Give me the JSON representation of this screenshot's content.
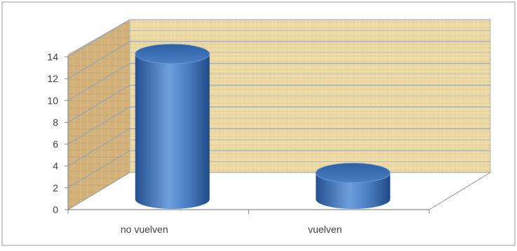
{
  "chart_data": {
    "type": "bar",
    "style": "3d-cylinder",
    "categories": [
      "no vuelven",
      "vuelven"
    ],
    "values": [
      13.3,
      2.4
    ],
    "ylim": [
      0,
      14
    ],
    "yticks": [
      0,
      2,
      4,
      6,
      8,
      10,
      12,
      14
    ],
    "grid": true,
    "legend": "none",
    "colors": {
      "bar": "#4a7fc4",
      "bar_dark": "#24508f",
      "bar_light": "#8db7ea",
      "wall": "#ecd9a4",
      "side_wall": "#d2b27a",
      "gridline": "#8aa2c9",
      "axis": "#8c8c8c",
      "text": "#404040"
    }
  }
}
